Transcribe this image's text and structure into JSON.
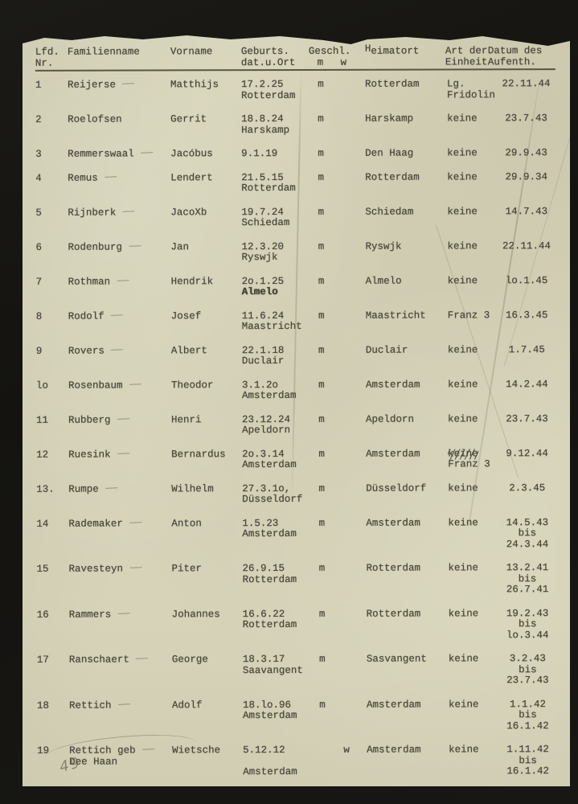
{
  "colors": {
    "background": "#161512",
    "paper": "#d6d3b9",
    "ink": "#4a473a",
    "pencil": "#8b8774"
  },
  "header": {
    "lfd_line1": "Lfd.",
    "lfd_line2": "Nr.",
    "familienname": "Familienname",
    "vorname": "Vorname",
    "geburts_line1": "Geburts.",
    "geburts_line2": "dat.u.Ort",
    "geschl": "Geschl.",
    "geschl_m": "m",
    "geschl_w": "w",
    "heimatort_initial": "H",
    "heimatort_rest": "eimatort",
    "einheit_line1": "Art der",
    "einheit_line2": "Einheit",
    "datum_line1": "Datum des",
    "datum_line2": "Aufenth."
  },
  "table": {
    "rows": [
      {
        "nr": "1",
        "familienname": "Reijerse",
        "dash": true,
        "vorname": "Matthijs",
        "geburt": [
          "17.2.25",
          "Rotterdam"
        ],
        "geschlecht": "m",
        "heimatort": "Rotterdam",
        "einheit": [
          "Lg.",
          "Fridolin"
        ],
        "datum": [
          "22.11.44"
        ]
      },
      {
        "nr": "2",
        "familienname": "Roelofsen",
        "dash": false,
        "vorname": "Gerrit",
        "geburt": [
          "18.8.24",
          "Harskamp"
        ],
        "geschlecht": "m",
        "heimatort": "Harskamp",
        "einheit": [
          "keine"
        ],
        "datum": [
          "23.7.43"
        ]
      },
      {
        "nr": "3",
        "familienname": "Remmerswaal",
        "dash": true,
        "vorname": "Jacóbus",
        "geburt": [
          "9.1.19"
        ],
        "geschlecht": "m",
        "heimatort": "Den Haag",
        "einheit": [
          "keine"
        ],
        "datum": [
          "29.9.43"
        ]
      },
      {
        "nr": "4",
        "familienname": "Remus",
        "dash": true,
        "vorname": "Lendert",
        "geburt": [
          "21.5.15",
          "Rotterdam"
        ],
        "geschlecht": "m",
        "heimatort": "Rotterdam",
        "einheit": [
          "keine"
        ],
        "datum": [
          "29.9.34"
        ]
      },
      {
        "nr": "5",
        "familienname": "Rijnberk",
        "dash": true,
        "vorname": "JacoXb",
        "geburt": [
          "19.7.24",
          "Schiedam"
        ],
        "geschlecht": "m",
        "heimatort": "Schiedam",
        "einheit": [
          "keine"
        ],
        "datum": [
          "14.7.43"
        ]
      },
      {
        "nr": "6",
        "familienname": "Rodenburg",
        "dash": true,
        "vorname": "Jan",
        "geburt": [
          "12.3.20",
          "Ryswjk"
        ],
        "geschlecht": "m",
        "heimatort": "Ryswjk",
        "einheit": [
          "keine"
        ],
        "datum": [
          "22.11.44"
        ]
      },
      {
        "nr": "7",
        "familienname": "Rothman",
        "dash": true,
        "vorname": "Hendrik",
        "geburt": [
          "2o.1.25",
          "Almelo"
        ],
        "geburt_bold": 1,
        "geschlecht": "m",
        "heimatort": "Almelo",
        "einheit": [
          "keine"
        ],
        "datum": [
          "lo.1.45"
        ]
      },
      {
        "nr": "8",
        "familienname": "Rodolf",
        "dash": true,
        "vorname": "Josef",
        "geburt": [
          "11.6.24",
          "Maastricht"
        ],
        "geschlecht": "m",
        "heimatort": "Maastricht",
        "einheit": [
          "Franz 3"
        ],
        "datum": [
          "16.3.45"
        ]
      },
      {
        "nr": "9",
        "familienname": "Rovers",
        "dash": true,
        "vorname": "Albert",
        "geburt": [
          "22.1.18",
          "Duclair"
        ],
        "geschlecht": "m",
        "heimatort": "Duclair",
        "einheit": [
          "keine"
        ],
        "datum": [
          "1.7.45"
        ]
      },
      {
        "nr": "lo",
        "familienname": "Rosenbaum",
        "dash": true,
        "vorname": "Theodor",
        "geburt": [
          "3.1.2o",
          "Amsterdam"
        ],
        "geschlecht": "m",
        "heimatort": "Amsterdam",
        "einheit": [
          "keine"
        ],
        "datum": [
          "14.2.44"
        ]
      },
      {
        "nr": "11",
        "familienname": "Rubberg",
        "dash": true,
        "vorname": "Henri",
        "geburt": [
          "23.12.24",
          "Apeldorn"
        ],
        "geschlecht": "m",
        "heimatort": "Apeldorn",
        "einheit": [
          "keine"
        ],
        "datum": [
          "23.7.43"
        ]
      },
      {
        "nr": "12",
        "familienname": "Ruesink",
        "dash": true,
        "vorname": "Bernardus",
        "geburt": [
          "2o.3.14",
          "Amsterdam"
        ],
        "geschlecht": "m",
        "heimatort": "Amsterdam",
        "einheit": [
          "keine",
          "Franz 3"
        ],
        "einheit_struck": 0,
        "datum": [
          "9.12.44"
        ]
      },
      {
        "nr": "13.",
        "familienname": "Rumpe",
        "dash": true,
        "vorname": "Wilhelm",
        "geburt": [
          "27.3.1o,",
          "Düsseldorf"
        ],
        "geschlecht": "m",
        "heimatort": "Düsseldorf",
        "einheit": [
          "keine"
        ],
        "datum": [
          "2.3.45"
        ]
      },
      {
        "nr": "14",
        "familienname": "Rademaker",
        "dash": true,
        "vorname": "Anton",
        "geburt": [
          "1.5.23",
          "Amsterdam"
        ],
        "geschlecht": "m",
        "heimatort": "Amsterdam",
        "einheit": [
          "keine"
        ],
        "datum": [
          "14.5.43",
          "bis",
          "24.3.44"
        ]
      },
      {
        "nr": "15",
        "familienname": "Ravesteyn",
        "dash": true,
        "vorname": "Piter",
        "geburt": [
          "26.9.15",
          "Rotterdam"
        ],
        "geschlecht": "m",
        "heimatort": "Rotterdam",
        "einheit": [
          "keine"
        ],
        "datum": [
          "13.2.41",
          "bis",
          "26.7.41"
        ]
      },
      {
        "nr": "16",
        "familienname": "Rammers",
        "dash": true,
        "vorname": "Johannes",
        "geburt": [
          "16.6.22",
          "Rotterdam"
        ],
        "geschlecht": "m",
        "heimatort": "Rotterdam",
        "einheit": [
          "keine"
        ],
        "datum": [
          "19.2.43",
          "bis",
          "lo.3.44"
        ]
      },
      {
        "nr": "17",
        "familienname": "Ranschaert",
        "dash": true,
        "vorname": "George",
        "geburt": [
          "18.3.17",
          "Saavangent"
        ],
        "geschlecht": "m",
        "heimatort": "Sasvangent",
        "einheit": [
          "keine"
        ],
        "datum": [
          "3.2.43",
          "bis",
          "23.7.43"
        ]
      },
      {
        "nr": "18",
        "familienname": "Rettich",
        "dash": true,
        "vorname": "Adolf",
        "geburt": [
          "18.lo.96",
          "Amsterdam"
        ],
        "geschlecht": "m",
        "heimatort": "Amsterdam",
        "einheit": [
          "keine"
        ],
        "datum": [
          "1.1.42",
          "bis",
          "16.1.42"
        ]
      },
      {
        "nr": "19",
        "familienname": [
          "Rettich geb",
          "Dee Haan"
        ],
        "dash": true,
        "vorname": "Wietsche",
        "geburt": [
          "5.12.12",
          "",
          "Amsterdam"
        ],
        "geschlecht": "w",
        "heimatort": "Amsterdam",
        "einheit": [
          "keine"
        ],
        "datum": [
          "1.11.42",
          "bis",
          "16.1.42"
        ]
      }
    ]
  },
  "annotations": {
    "pencil_page_number": "49"
  }
}
